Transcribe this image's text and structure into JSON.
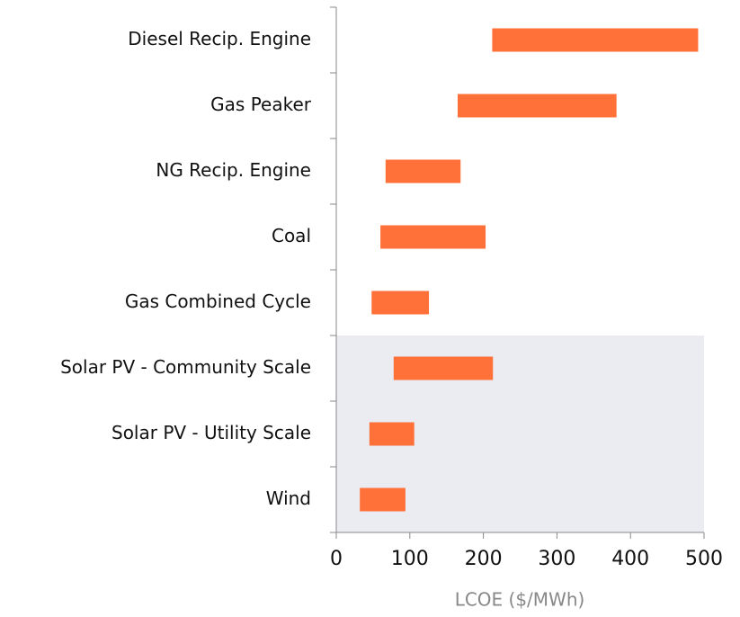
{
  "chart_data": {
    "type": "range-bar",
    "categories": [
      "Diesel Recip. Engine",
      "Gas Peaker",
      "NG Recip. Engine",
      "Coal",
      "Gas Combined Cycle",
      "Solar PV - Community Scale",
      "Solar PV - Utility Scale",
      "Wind"
    ],
    "low": [
      212,
      165,
      67,
      60,
      48,
      78,
      45,
      32
    ],
    "high": [
      492,
      381,
      169,
      203,
      126,
      213,
      106,
      94
    ],
    "color": "#ff7139",
    "x_label": "LCOE ($/MWh)",
    "xlim": [
      0,
      500
    ],
    "xticks": [
      0,
      100,
      200,
      300,
      400,
      500
    ]
  }
}
